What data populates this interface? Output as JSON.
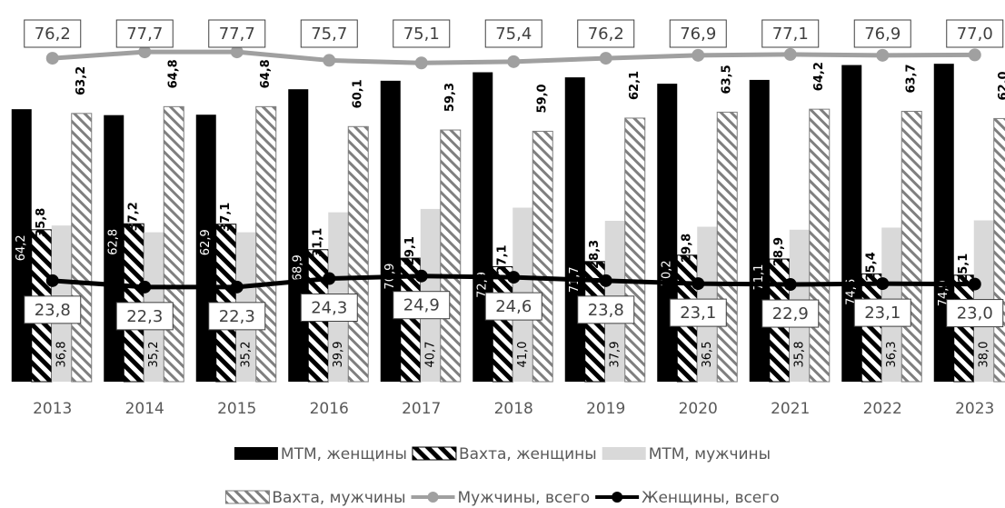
{
  "chart_data": {
    "type": "bar",
    "categories": [
      "2013",
      "2014",
      "2015",
      "2016",
      "2017",
      "2018",
      "2019",
      "2020",
      "2021",
      "2022",
      "2023"
    ],
    "ylim": [
      0,
      85
    ],
    "series": [
      {
        "name": "МТМ, женщины",
        "type": "bar",
        "color": "#000000",
        "hatch": false,
        "values": [
          64.2,
          62.8,
          62.9,
          68.9,
          70.9,
          72.9,
          71.7,
          70.2,
          71.1,
          74.6,
          74.9
        ],
        "value_labels": [
          "64,2",
          "62,8",
          "62,9",
          "68,9",
          "70,9",
          "72,9",
          "71,7",
          "70,2",
          "71,1",
          "74,6",
          "74,9"
        ]
      },
      {
        "name": "Вахта, женщины",
        "type": "bar",
        "color": "#000000",
        "hatch": true,
        "values": [
          35.8,
          37.2,
          37.1,
          31.1,
          29.1,
          27.1,
          28.3,
          29.8,
          28.9,
          25.4,
          25.1
        ],
        "value_labels": [
          "35,8",
          "37,2",
          "37,1",
          "31,1",
          "29,1",
          "27,1",
          "28,3",
          "29,8",
          "28,9",
          "25,4",
          "25,1"
        ]
      },
      {
        "name": "МТМ, мужчины",
        "type": "bar",
        "color": "#d9d9d9",
        "hatch": false,
        "values": [
          36.8,
          35.2,
          35.2,
          39.9,
          40.7,
          41.0,
          37.9,
          36.5,
          35.8,
          36.3,
          38.0
        ],
        "value_labels": [
          "36,8",
          "35,2",
          "35,2",
          "39,9",
          "40,7",
          "41,0",
          "37,9",
          "36,5",
          "35,8",
          "36,3",
          "38,0"
        ]
      },
      {
        "name": "Вахта, мужчины",
        "type": "bar",
        "color": "#7f7f7f",
        "hatch": true,
        "values": [
          63.2,
          64.8,
          64.8,
          60.1,
          59.3,
          59.0,
          62.1,
          63.5,
          64.2,
          63.7,
          62.0
        ],
        "value_labels": [
          "63,2",
          "64,8",
          "64,8",
          "60,1",
          "59,3",
          "59,0",
          "62,1",
          "63,5",
          "64,2",
          "63,7",
          "62,0"
        ]
      },
      {
        "name": "Мужчины, всего",
        "type": "line",
        "color": "#a0a0a0",
        "values": [
          76.2,
          77.7,
          77.7,
          75.7,
          75.1,
          75.4,
          76.2,
          76.9,
          77.1,
          76.9,
          77.0
        ],
        "value_labels": [
          "76,2",
          "77,7",
          "77,7",
          "75,7",
          "75,1",
          "75,4",
          "76,2",
          "76,9",
          "77,1",
          "76,9",
          "77,0"
        ]
      },
      {
        "name": "Женщины, всего",
        "type": "line",
        "color": "#000000",
        "values": [
          23.8,
          22.3,
          22.3,
          24.3,
          24.9,
          24.6,
          23.8,
          23.1,
          22.9,
          23.1,
          23.0
        ],
        "value_labels": [
          "23,8",
          "22,3",
          "22,3",
          "24,3",
          "24,9",
          "24,6",
          "23,8",
          "23,1",
          "22,9",
          "23,1",
          "23,0"
        ]
      }
    ],
    "legend": "bottom"
  }
}
